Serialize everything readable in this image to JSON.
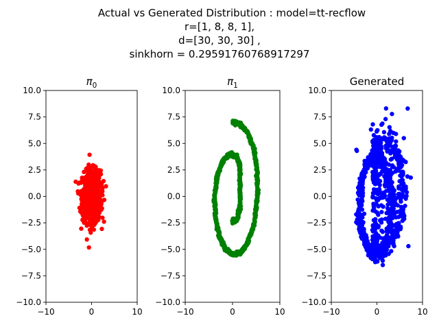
{
  "figure": {
    "suptitle_lines": [
      "Actual vs Generated Distribution : model=tt-recflow",
      "r=[1, 8, 8, 1],",
      "d=[30, 30, 30] ,",
      "sinkhorn = 0.29591760768917297"
    ]
  },
  "chart_data": [
    {
      "type": "scatter",
      "title": "π0",
      "title_base": "π",
      "title_sub": "0",
      "xlim": [
        -10,
        10
      ],
      "ylim": [
        -10,
        10
      ],
      "xticks": [
        -10,
        0,
        10
      ],
      "yticks": [
        -10.0,
        -7.5,
        -5.0,
        -2.5,
        0.0,
        2.5,
        5.0,
        7.5,
        10.0
      ],
      "color": "#ff0000",
      "distribution": "gaussian",
      "center": [
        0,
        0
      ],
      "std": [
        1.0,
        1.2
      ],
      "n_points": 1000
    },
    {
      "type": "scatter",
      "title": "π1",
      "title_base": "π",
      "title_sub": "1",
      "xlim": [
        -10,
        10
      ],
      "ylim": [
        -10,
        10
      ],
      "xticks": [
        -10,
        0,
        10
      ],
      "yticks": [
        -10.0,
        -7.5,
        -5.0,
        -2.5,
        0.0,
        2.5,
        5.0,
        7.5,
        10.0
      ],
      "color": "#008000",
      "distribution": "spiral",
      "spiral_start": [
        0,
        -2.3
      ],
      "spiral_end": [
        0,
        7.0
      ],
      "n_points": 1000
    },
    {
      "type": "scatter",
      "title": "Generated",
      "xlim": [
        -10,
        10
      ],
      "ylim": [
        -10,
        10
      ],
      "xticks": [
        -10,
        0,
        10
      ],
      "yticks": [
        -10.0,
        -7.5,
        -5.0,
        -2.5,
        0.0,
        2.5,
        5.0,
        7.5,
        10.0
      ],
      "color": "#0000ff",
      "distribution": "noisy-spiral",
      "n_points": 1000
    }
  ]
}
